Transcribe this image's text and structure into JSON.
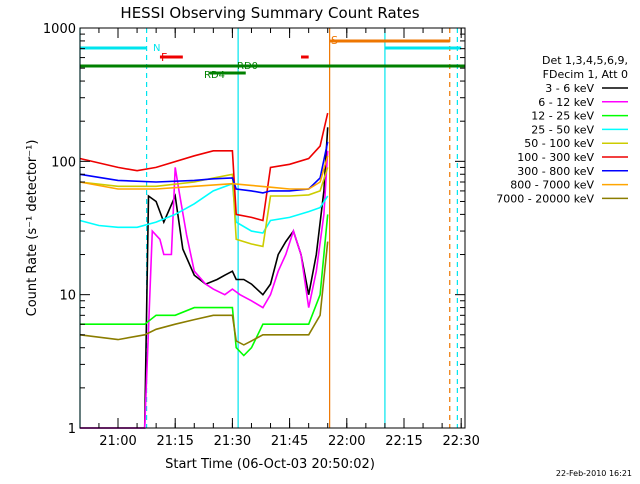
{
  "chart_data": {
    "type": "line",
    "title": "HESSI Observing Summary Count Rates",
    "xlabel": "Start Time (06-Oct-03 20:50:02)",
    "ylabel": "Count Rate (s⁻¹ detector⁻¹)",
    "xlim": [
      "20:50:02",
      "22:31:00"
    ],
    "ylim": [
      1,
      1000
    ],
    "yscale": "log",
    "grid": false,
    "legend_position": "right",
    "legend_header": [
      "Det 1,3,4,5,6,9,",
      "FDecim 1, Att 0"
    ],
    "x_ticks": [
      "21:00",
      "21:15",
      "21:30",
      "21:45",
      "22:00",
      "22:15",
      "22:30"
    ],
    "y_ticks": [
      "1",
      "10",
      "100",
      "1000"
    ],
    "footer_date": "22-Feb-2010 16:21",
    "annotations": {
      "N": "N",
      "F": "F",
      "S": "S",
      "RD0": "RD0",
      "RD4": "RD4"
    },
    "flags": {
      "night": {
        "label": "N",
        "color": "#00e5ee",
        "intervals": [
          [
            "20:50:02",
            "21:07:30"
          ],
          [
            "22:10:00",
            "22:30:00"
          ]
        ]
      },
      "flare": {
        "label": "F",
        "color": "#ee0000",
        "intervals": [
          [
            "21:11:00",
            "21:17:00"
          ],
          [
            "21:48:00",
            "21:50:00"
          ]
        ]
      },
      "saa": {
        "label": "S",
        "color": "#ee7600",
        "intervals": [
          [
            "21:55:30",
            "22:27:00"
          ]
        ]
      },
      "rd0": {
        "label": "RD0",
        "color": "#008000",
        "intervals": [
          [
            "20:50:02",
            "22:31:00"
          ]
        ]
      },
      "rd4": {
        "label": "RD4",
        "color": "#008000",
        "intervals": [
          [
            "21:24:00",
            "21:33:30"
          ]
        ]
      }
    },
    "markers": [
      {
        "time": "20:50:02",
        "color": "#00e5ee",
        "style": "solid"
      },
      {
        "time": "21:07:30",
        "color": "#00e5ee",
        "style": "dashed"
      },
      {
        "time": "21:31:30",
        "color": "#00e5ee",
        "style": "solid"
      },
      {
        "time": "21:55:30",
        "color": "#ee7600",
        "style": "solid"
      },
      {
        "time": "22:10:00",
        "color": "#00e5ee",
        "style": "solid"
      },
      {
        "time": "22:27:00",
        "color": "#ee7600",
        "style": "dashed"
      },
      {
        "time": "22:29:00",
        "color": "#00e5ee",
        "style": "dashed"
      }
    ],
    "series": [
      {
        "name": "3 - 6 keV",
        "color": "#000000",
        "x": [
          "20:50",
          "21:07",
          "21:08",
          "21:10",
          "21:12",
          "21:15",
          "21:17",
          "21:20",
          "21:23",
          "21:26",
          "21:28",
          "21:30",
          "21:31",
          "21:33",
          "21:35",
          "21:38",
          "21:40",
          "21:42",
          "21:44",
          "21:46",
          "21:48",
          "21:50",
          "21:52",
          "21:54",
          "21:55"
        ],
        "y": [
          1,
          1,
          55,
          50,
          35,
          55,
          22,
          14,
          12,
          13,
          14,
          15,
          13,
          13,
          12,
          10,
          12,
          20,
          25,
          30,
          20,
          10,
          20,
          60,
          180
        ]
      },
      {
        "name": "6 - 12 keV",
        "color": "#ff00ff",
        "x": [
          "20:50",
          "21:07",
          "21:09",
          "21:11",
          "21:12",
          "21:14",
          "21:15",
          "21:16",
          "21:18",
          "21:20",
          "21:23",
          "21:25",
          "21:28",
          "21:30",
          "21:32",
          "21:35",
          "21:38",
          "21:40",
          "21:42",
          "21:44",
          "21:46",
          "21:48",
          "21:50",
          "21:52",
          "21:54",
          "21:55"
        ],
        "y": [
          1,
          1,
          30,
          26,
          20,
          20,
          90,
          60,
          28,
          15,
          12,
          11,
          10,
          11,
          10,
          9,
          8,
          10,
          15,
          20,
          30,
          20,
          8,
          15,
          40,
          120
        ]
      },
      {
        "name": "12 - 25 keV",
        "color": "#00ff00",
        "x": [
          "20:50",
          "21:07",
          "21:10",
          "21:15",
          "21:20",
          "21:25",
          "21:30",
          "21:31",
          "21:33",
          "21:35",
          "21:38",
          "21:40",
          "21:45",
          "21:50",
          "21:53",
          "21:55"
        ],
        "y": [
          6,
          6,
          7,
          7,
          8,
          8,
          8,
          4,
          3.5,
          4,
          6,
          6,
          6,
          6,
          10,
          40
        ]
      },
      {
        "name": "25 - 50 keV",
        "color": "#00ffff",
        "x": [
          "20:50",
          "20:55",
          "21:00",
          "21:05",
          "21:10",
          "21:15",
          "21:20",
          "21:25",
          "21:30",
          "21:31",
          "21:35",
          "21:38",
          "21:40",
          "21:45",
          "21:50",
          "21:53",
          "21:55"
        ],
        "y": [
          36,
          33,
          32,
          32,
          35,
          40,
          48,
          60,
          68,
          35,
          30,
          29,
          36,
          38,
          42,
          45,
          55
        ]
      },
      {
        "name": "50 - 100 keV",
        "color": "#cccc00",
        "x": [
          "20:50",
          "21:00",
          "21:10",
          "21:20",
          "21:25",
          "21:30",
          "21:31",
          "21:35",
          "21:38",
          "21:40",
          "21:45",
          "21:50",
          "21:53",
          "21:55"
        ],
        "y": [
          70,
          65,
          65,
          70,
          75,
          80,
          26,
          24,
          23,
          55,
          55,
          56,
          60,
          90
        ]
      },
      {
        "name": "100 - 300 keV",
        "color": "#ee0000",
        "x": [
          "20:50",
          "21:00",
          "21:05",
          "21:10",
          "21:20",
          "21:25",
          "21:30",
          "21:31",
          "21:35",
          "21:38",
          "21:40",
          "21:45",
          "21:50",
          "21:53",
          "21:55"
        ],
        "y": [
          105,
          90,
          85,
          90,
          110,
          120,
          120,
          40,
          38,
          36,
          90,
          95,
          105,
          130,
          230
        ]
      },
      {
        "name": "300 - 800 keV",
        "color": "#0000ff",
        "x": [
          "20:50",
          "21:00",
          "21:10",
          "21:20",
          "21:25",
          "21:30",
          "21:31",
          "21:35",
          "21:38",
          "21:40",
          "21:45",
          "21:50",
          "21:53",
          "21:55"
        ],
        "y": [
          80,
          72,
          70,
          72,
          74,
          75,
          62,
          60,
          58,
          60,
          60,
          62,
          75,
          140
        ]
      },
      {
        "name": "800 - 7000 keV",
        "color": "#ffa500",
        "x": [
          "20:50",
          "21:00",
          "21:10",
          "21:20",
          "21:30",
          "21:35",
          "21:40",
          "21:45",
          "21:50",
          "21:53",
          "21:55"
        ],
        "y": [
          70,
          62,
          62,
          65,
          68,
          66,
          64,
          62,
          62,
          70,
          110
        ]
      },
      {
        "name": "7000 - 20000 keV",
        "color": "#8b7d00",
        "x": [
          "20:50",
          "21:00",
          "21:07",
          "21:10",
          "21:15",
          "21:20",
          "21:25",
          "21:30",
          "21:31",
          "21:33",
          "21:35",
          "21:38",
          "21:40",
          "21:45",
          "21:50",
          "21:53",
          "21:55"
        ],
        "y": [
          5,
          4.6,
          5,
          5.5,
          6,
          6.5,
          7,
          7,
          4.5,
          4.2,
          4.5,
          5,
          5,
          5,
          5,
          7,
          25
        ]
      }
    ]
  }
}
